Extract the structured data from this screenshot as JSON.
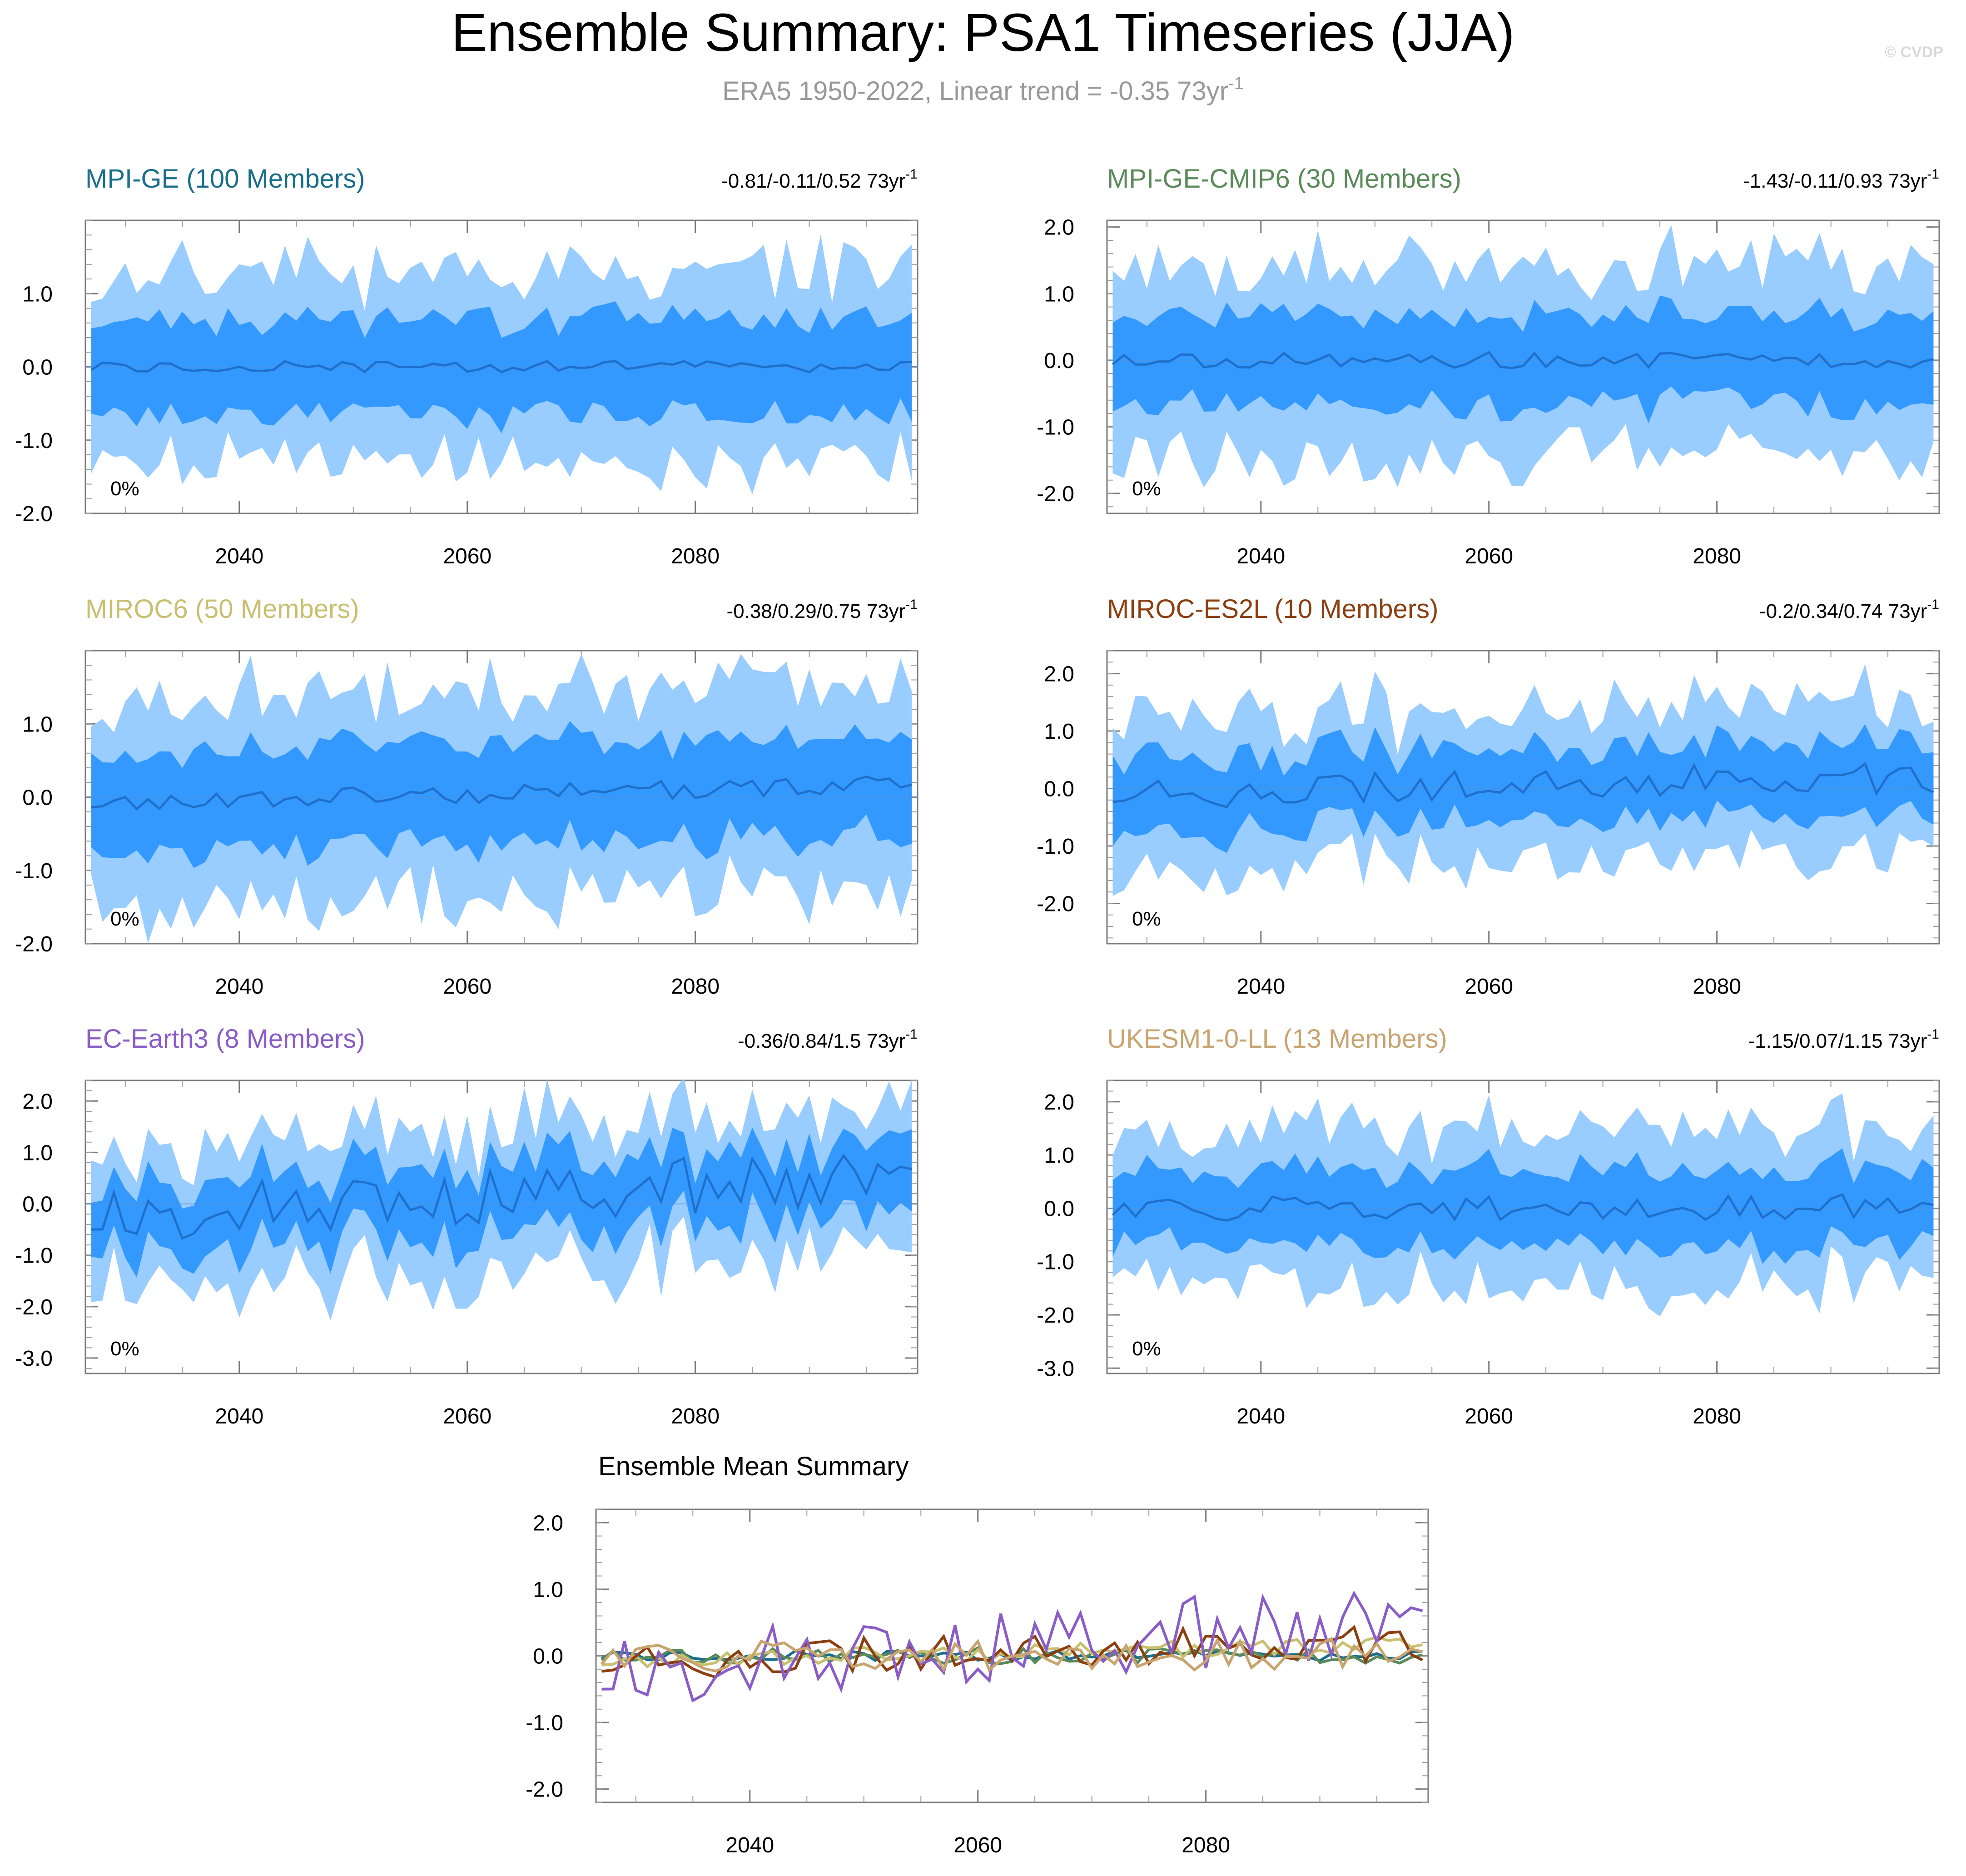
{
  "title": "Ensemble Summary: PSA1 Timeseries (JJA)",
  "subtitle": {
    "text": "ERA5 1950-2022, Linear trend = -0.35 73yr",
    "sup": "-1"
  },
  "credit": "© CVDP",
  "colors": {
    "outer_band": "#99ccff",
    "inner_band": "#3399ff",
    "mean_line": "#1e70cc",
    "axis": "#000000",
    "subtitle": "#999999",
    "credit": "#d9d9d9"
  },
  "x_axis": {
    "min": 2026.5,
    "max": 2099.5,
    "ticks": [
      "2040",
      "2060",
      "2080"
    ],
    "tick_values": [
      2040,
      2060,
      2080
    ]
  },
  "panels": [
    {
      "name": "MPI-GE (100 Members)",
      "color": "#1a6e8c",
      "stat": "-0.81/-0.11/0.52 73yr",
      "stat_sup": "-1",
      "pct": "0%",
      "ylim": [
        -2.0,
        2.0
      ],
      "yticks": [
        "1.0",
        "0.0",
        "-1.0",
        "-2.0"
      ],
      "ytick_values": [
        1.0,
        0.0,
        -1.0,
        -2.0
      ],
      "amp": {
        "outer": 1.3,
        "inner": 0.62,
        "mean": 0.08,
        "trend": 0.0
      },
      "seed": 11
    },
    {
      "name": "MPI-GE-CMIP6 (30 Members)",
      "color": "#5a8a5a",
      "stat": "-1.43/-0.11/0.93 73yr",
      "stat_sup": "-1",
      "pct": "0%",
      "ylim": [
        -2.3,
        2.1
      ],
      "yticks": [
        "2.0",
        "1.0",
        "0.0",
        "-1.0",
        "-2.0"
      ],
      "ytick_values": [
        2.0,
        1.0,
        0.0,
        -1.0,
        -2.0
      ],
      "amp": {
        "outer": 1.45,
        "inner": 0.65,
        "mean": 0.12,
        "trend": 0.0
      },
      "seed": 23
    },
    {
      "name": "MIROC6 (50 Members)",
      "color": "#c8c070",
      "stat": "-0.38/0.29/0.75 73yr",
      "stat_sup": "-1",
      "pct": "0%",
      "ylim": [
        -2.0,
        2.0
      ],
      "yticks": [
        "1.0",
        "0.0",
        "-1.0",
        "-2.0"
      ],
      "ytick_values": [
        1.0,
        0.0,
        -1.0,
        -2.0
      ],
      "amp": {
        "outer": 1.4,
        "inner": 0.65,
        "mean": 0.1,
        "trend": 0.25
      },
      "seed": 37
    },
    {
      "name": "MIROC-ES2L (10 Members)",
      "color": "#8b3f10",
      "stat": "-0.2/0.34/0.74 73yr",
      "stat_sup": "-1",
      "pct": "0%",
      "ylim": [
        -2.7,
        2.4
      ],
      "yticks": [
        "2.0",
        "1.0",
        "0.0",
        "-1.0",
        "-2.0"
      ],
      "ytick_values": [
        2.0,
        1.0,
        0.0,
        -1.0,
        -2.0
      ],
      "amp": {
        "outer": 1.35,
        "inner": 0.6,
        "mean": 0.22,
        "trend": 0.3
      },
      "seed": 41
    },
    {
      "name": "EC-Earth3 (8 Members)",
      "color": "#8a5cc8",
      "stat": "-0.36/0.84/1.5 73yr",
      "stat_sup": "-1",
      "pct": "0%",
      "ylim": [
        -3.3,
        2.4
      ],
      "yticks": [
        "2.0",
        "1.0",
        "0.0",
        "-1.0",
        "-2.0",
        "-3.0"
      ],
      "ytick_values": [
        2.0,
        1.0,
        0.0,
        -1.0,
        -2.0,
        -3.0
      ],
      "amp": {
        "outer": 1.4,
        "inner": 0.65,
        "mean": 0.35,
        "trend": 0.7
      },
      "seed": 53
    },
    {
      "name": "UKESM1-0-LL (13 Members)",
      "color": "#c8a470",
      "stat": "-1.15/0.07/1.15 73yr",
      "stat_sup": "-1",
      "pct": "0%",
      "ylim": [
        -3.1,
        2.4
      ],
      "yticks": [
        "2.0",
        "1.0",
        "0.0",
        "-1.0",
        "-2.0",
        "-3.0"
      ],
      "ytick_values": [
        2.0,
        1.0,
        0.0,
        -1.0,
        -2.0,
        -3.0
      ],
      "amp": {
        "outer": 1.45,
        "inner": 0.68,
        "mean": 0.22,
        "trend": 0.05
      },
      "seed": 67
    }
  ],
  "summary": {
    "title": "Ensemble Mean Summary",
    "ylim": [
      -2.2,
      2.2
    ],
    "yticks": [
      "2.0",
      "1.0",
      "0.0",
      "-1.0",
      "-2.0"
    ],
    "ytick_values": [
      2.0,
      1.0,
      0.0,
      -1.0,
      -2.0
    ]
  },
  "chart_data": [
    {
      "type": "area",
      "title": "MPI-GE (100 Members)",
      "x_range": [
        2027,
        2099
      ],
      "ylim": [
        -2.0,
        2.0
      ],
      "annotation": "-0.81/-0.11/0.52 73yr-1",
      "description_values": {
        "outer_band": [
          -1.5,
          1.8
        ],
        "inner_band": [
          -0.9,
          1.2
        ],
        "mean": [
          -0.2,
          0.15
        ]
      }
    },
    {
      "type": "area",
      "title": "MPI-GE-CMIP6 (30 Members)",
      "x_range": [
        2027,
        2099
      ],
      "ylim": [
        -2.3,
        2.1
      ],
      "annotation": "-1.43/-0.11/0.93 73yr-1",
      "description_values": {
        "outer_band": [
          -2.2,
          2.0
        ],
        "inner_band": [
          -1.2,
          1.0
        ],
        "mean": [
          -0.4,
          0.3
        ]
      }
    },
    {
      "type": "area",
      "title": "MIROC6 (50 Members)",
      "x_range": [
        2027,
        2099
      ],
      "ylim": [
        -2.0,
        2.0
      ],
      "annotation": "-0.38/0.29/0.75 73yr-1",
      "description_values": {
        "outer_band": [
          -1.9,
          1.6
        ],
        "inner_band": [
          -1.1,
          1.0
        ],
        "mean": [
          -0.3,
          0.3
        ]
      }
    },
    {
      "type": "area",
      "title": "MIROC-ES2L (10 Members)",
      "x_range": [
        2027,
        2099
      ],
      "ylim": [
        -2.7,
        2.4
      ],
      "annotation": "-0.2/0.34/0.74 73yr-1",
      "description_values": {
        "outer_band": [
          -2.5,
          2.3
        ],
        "inner_band": [
          -1.5,
          1.8
        ],
        "mean": [
          -0.6,
          0.6
        ]
      }
    },
    {
      "type": "area",
      "title": "EC-Earth3 (8 Members)",
      "x_range": [
        2027,
        2099
      ],
      "ylim": [
        -3.3,
        2.4
      ],
      "annotation": "-0.36/0.84/1.5 73yr-1",
      "description_values": {
        "outer_band": [
          -3.1,
          2.1
        ],
        "inner_band": [
          -2.0,
          1.3
        ],
        "mean": [
          -0.9,
          0.9
        ]
      }
    },
    {
      "type": "area",
      "title": "UKESM1-0-LL (13 Members)",
      "x_range": [
        2027,
        2099
      ],
      "ylim": [
        -3.1,
        2.4
      ],
      "annotation": "-1.15/0.07/1.15 73yr-1",
      "description_values": {
        "outer_band": [
          -3.0,
          2.2
        ],
        "inner_band": [
          -1.5,
          1.0
        ],
        "mean": [
          -0.5,
          0.6
        ]
      }
    },
    {
      "type": "line",
      "title": "Ensemble Mean Summary",
      "x_range": [
        2027,
        2099
      ],
      "ylim": [
        -2.2,
        2.2
      ],
      "series": [
        "MPI-GE",
        "MPI-GE-CMIP6",
        "MIROC6",
        "MIROC-ES2L",
        "EC-Earth3",
        "UKESM1-0-LL"
      ]
    }
  ]
}
